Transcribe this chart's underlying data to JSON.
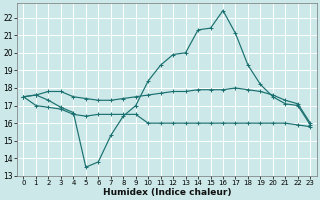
{
  "xlabel": "Humidex (Indice chaleur)",
  "xlim": [
    -0.5,
    23.5
  ],
  "ylim": [
    13,
    22.8
  ],
  "yticks": [
    13,
    14,
    15,
    16,
    17,
    18,
    19,
    20,
    21,
    22
  ],
  "xticks": [
    0,
    1,
    2,
    3,
    4,
    5,
    6,
    7,
    8,
    9,
    10,
    11,
    12,
    13,
    14,
    15,
    16,
    17,
    18,
    19,
    20,
    21,
    22,
    23
  ],
  "bg_color": "#cce8e8",
  "grid_color": "#b8d8d8",
  "line_color": "#1a7070",
  "line1_y": [
    17.5,
    17.6,
    17.8,
    17.8,
    17.5,
    17.4,
    17.3,
    17.3,
    17.4,
    17.5,
    17.6,
    17.7,
    17.8,
    17.8,
    17.9,
    17.9,
    17.9,
    18.0,
    17.9,
    17.8,
    17.6,
    17.3,
    17.1,
    16.0
  ],
  "line2_y": [
    17.5,
    17.6,
    17.3,
    16.9,
    16.6,
    13.5,
    13.8,
    15.3,
    16.4,
    17.0,
    18.4,
    19.3,
    19.9,
    20.0,
    21.3,
    21.4,
    22.4,
    21.1,
    19.3,
    18.2,
    17.5,
    17.1,
    17.0,
    15.9
  ],
  "line3_y": [
    17.5,
    17.0,
    16.9,
    16.8,
    16.5,
    16.4,
    16.5,
    16.5,
    16.5,
    16.5,
    16.0,
    16.0,
    16.0,
    16.0,
    16.0,
    16.0,
    16.0,
    16.0,
    16.0,
    16.0,
    16.0,
    16.0,
    15.9,
    15.8
  ]
}
